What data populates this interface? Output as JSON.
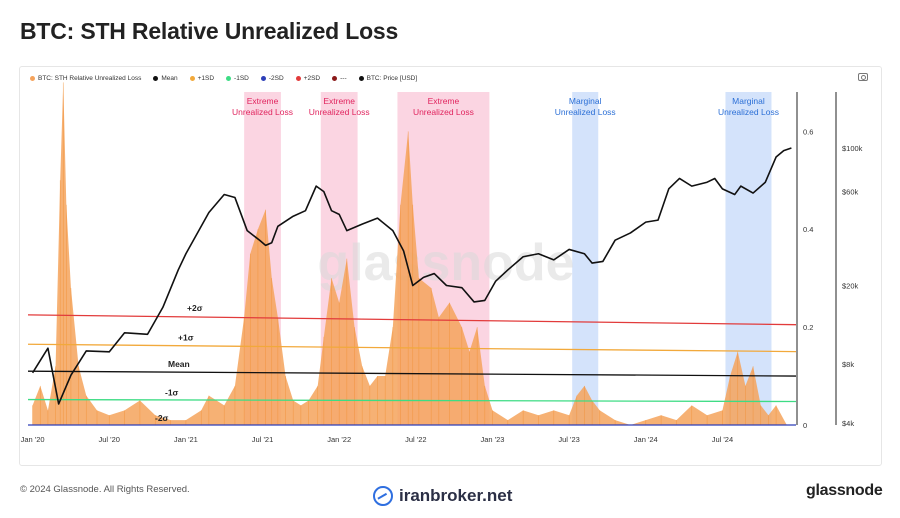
{
  "header": {
    "title": "BTC: STH Relative Unrealized Loss"
  },
  "legend": [
    {
      "label": "BTC: STH Relative Unrealized Loss",
      "color": "#f5a35c"
    },
    {
      "label": "Mean",
      "color": "#111111"
    },
    {
      "label": "+1SD",
      "color": "#f2a93b"
    },
    {
      "label": "-1SD",
      "color": "#3ddc84"
    },
    {
      "label": "-2SD",
      "color": "#2d3fb8"
    },
    {
      "label": "+2SD",
      "color": "#e23b3b"
    },
    {
      "label": "---",
      "color": "#8b1a1a"
    },
    {
      "label": "BTC: Price [USD]",
      "color": "#111111"
    }
  ],
  "footer": {
    "copyright": "© 2024 Glassnode. All Rights Reserved.",
    "brand": "iranbroker.net",
    "logo": "glassnode"
  },
  "watermark": "glassnode",
  "chart_data": {
    "type": "area",
    "x_labels": [
      "Jan '20",
      "Jul '20",
      "Jan '21",
      "Jul '21",
      "Jan '22",
      "Jul '22",
      "Jan '23",
      "Jul '23",
      "Jan '24",
      "Jul '24"
    ],
    "y_right_inner": {
      "ticks": [
        "0",
        "0.2",
        "0.4",
        "0.6"
      ],
      "range": [
        0,
        0.6
      ]
    },
    "y_right_outer": {
      "ticks": [
        "$4k",
        "$8k",
        "$20k",
        "$60k",
        "$100k"
      ],
      "scale": "log"
    },
    "bands": [
      {
        "label": "Extreme\nUnrealized Loss",
        "kind": "extreme",
        "start": 2021.38,
        "end": 2021.62
      },
      {
        "label": "Extreme\nUnrealized Loss",
        "kind": "extreme",
        "start": 2021.88,
        "end": 2022.12
      },
      {
        "label": "Extreme\nUnrealized Loss",
        "kind": "extreme",
        "start": 2022.38,
        "end": 2022.98
      },
      {
        "label": "Marginal\nUnrealized Loss",
        "kind": "marginal",
        "start": 2023.52,
        "end": 2023.69
      },
      {
        "label": "Marginal\nUnrealized Loss",
        "kind": "marginal",
        "start": 2024.52,
        "end": 2024.82
      }
    ],
    "sd_lines": [
      {
        "label": "+2σ",
        "color": "#e23b3b",
        "values": [
          0.225,
          0.205
        ]
      },
      {
        "label": "+1σ",
        "color": "#f2a93b",
        "values": [
          0.165,
          0.15
        ]
      },
      {
        "label": "Mean",
        "color": "#111111",
        "values": [
          0.11,
          0.1
        ]
      },
      {
        "label": "-1σ",
        "color": "#3ddc84",
        "values": [
          0.052,
          0.048
        ]
      },
      {
        "label": "-2σ",
        "color": "#2d3fb8",
        "values": [
          0.0,
          0.0
        ]
      }
    ],
    "series": [
      {
        "name": "BTC: STH Relative Unrealized Loss",
        "color": "#f5a35c",
        "points": [
          [
            2020.0,
            0.04
          ],
          [
            2020.05,
            0.08
          ],
          [
            2020.1,
            0.03
          ],
          [
            2020.15,
            0.12
          ],
          [
            2020.18,
            0.5
          ],
          [
            2020.2,
            0.7
          ],
          [
            2020.22,
            0.45
          ],
          [
            2020.25,
            0.28
          ],
          [
            2020.3,
            0.12
          ],
          [
            2020.35,
            0.06
          ],
          [
            2020.42,
            0.03
          ],
          [
            2020.5,
            0.02
          ],
          [
            2020.6,
            0.03
          ],
          [
            2020.7,
            0.05
          ],
          [
            2020.8,
            0.02
          ],
          [
            2020.9,
            0.01
          ],
          [
            2021.0,
            0.01
          ],
          [
            2021.1,
            0.03
          ],
          [
            2021.15,
            0.06
          ],
          [
            2021.25,
            0.04
          ],
          [
            2021.32,
            0.08
          ],
          [
            2021.38,
            0.22
          ],
          [
            2021.42,
            0.35
          ],
          [
            2021.47,
            0.4
          ],
          [
            2021.52,
            0.44
          ],
          [
            2021.56,
            0.3
          ],
          [
            2021.6,
            0.22
          ],
          [
            2021.65,
            0.1
          ],
          [
            2021.7,
            0.05
          ],
          [
            2021.75,
            0.04
          ],
          [
            2021.8,
            0.05
          ],
          [
            2021.86,
            0.08
          ],
          [
            2021.9,
            0.18
          ],
          [
            2021.95,
            0.3
          ],
          [
            2022.0,
            0.25
          ],
          [
            2022.05,
            0.34
          ],
          [
            2022.1,
            0.2
          ],
          [
            2022.15,
            0.12
          ],
          [
            2022.2,
            0.08
          ],
          [
            2022.25,
            0.1
          ],
          [
            2022.3,
            0.1
          ],
          [
            2022.35,
            0.2
          ],
          [
            2022.4,
            0.45
          ],
          [
            2022.45,
            0.6
          ],
          [
            2022.48,
            0.45
          ],
          [
            2022.52,
            0.3
          ],
          [
            2022.6,
            0.28
          ],
          [
            2022.65,
            0.22
          ],
          [
            2022.72,
            0.25
          ],
          [
            2022.8,
            0.2
          ],
          [
            2022.85,
            0.15
          ],
          [
            2022.9,
            0.2
          ],
          [
            2022.95,
            0.08
          ],
          [
            2023.0,
            0.03
          ],
          [
            2023.1,
            0.01
          ],
          [
            2023.2,
            0.03
          ],
          [
            2023.3,
            0.02
          ],
          [
            2023.4,
            0.03
          ],
          [
            2023.5,
            0.02
          ],
          [
            2023.55,
            0.06
          ],
          [
            2023.6,
            0.08
          ],
          [
            2023.65,
            0.05
          ],
          [
            2023.7,
            0.03
          ],
          [
            2023.8,
            0.01
          ],
          [
            2023.9,
            0.0
          ],
          [
            2024.0,
            0.01
          ],
          [
            2024.1,
            0.02
          ],
          [
            2024.2,
            0.01
          ],
          [
            2024.3,
            0.04
          ],
          [
            2024.4,
            0.02
          ],
          [
            2024.5,
            0.03
          ],
          [
            2024.55,
            0.1
          ],
          [
            2024.6,
            0.15
          ],
          [
            2024.65,
            0.08
          ],
          [
            2024.7,
            0.12
          ],
          [
            2024.75,
            0.04
          ],
          [
            2024.8,
            0.02
          ],
          [
            2024.85,
            0.04
          ],
          [
            2024.92,
            0.0
          ]
        ]
      },
      {
        "name": "BTC: Price [USD]",
        "color": "#111111",
        "points": [
          [
            2020.0,
            7200
          ],
          [
            2020.1,
            9600
          ],
          [
            2020.17,
            5000
          ],
          [
            2020.25,
            7000
          ],
          [
            2020.35,
            9300
          ],
          [
            2020.5,
            9200
          ],
          [
            2020.6,
            11500
          ],
          [
            2020.75,
            11300
          ],
          [
            2020.85,
            15500
          ],
          [
            2020.95,
            24000
          ],
          [
            2021.0,
            29000
          ],
          [
            2021.1,
            40000
          ],
          [
            2021.15,
            47000
          ],
          [
            2021.25,
            58000
          ],
          [
            2021.32,
            56000
          ],
          [
            2021.4,
            38000
          ],
          [
            2021.48,
            34000
          ],
          [
            2021.52,
            32000
          ],
          [
            2021.56,
            33000
          ],
          [
            2021.6,
            40000
          ],
          [
            2021.7,
            45000
          ],
          [
            2021.78,
            48000
          ],
          [
            2021.85,
            64000
          ],
          [
            2021.9,
            60000
          ],
          [
            2021.95,
            48000
          ],
          [
            2022.0,
            46000
          ],
          [
            2022.05,
            38000
          ],
          [
            2022.15,
            41000
          ],
          [
            2022.25,
            44000
          ],
          [
            2022.35,
            38000
          ],
          [
            2022.42,
            30000
          ],
          [
            2022.48,
            20000
          ],
          [
            2022.55,
            22000
          ],
          [
            2022.62,
            23000
          ],
          [
            2022.7,
            20000
          ],
          [
            2022.8,
            19500
          ],
          [
            2022.88,
            16500
          ],
          [
            2022.95,
            16800
          ],
          [
            2023.02,
            21000
          ],
          [
            2023.1,
            24000
          ],
          [
            2023.2,
            28000
          ],
          [
            2023.3,
            29000
          ],
          [
            2023.4,
            27000
          ],
          [
            2023.5,
            30500
          ],
          [
            2023.6,
            29000
          ],
          [
            2023.65,
            26000
          ],
          [
            2023.72,
            26500
          ],
          [
            2023.8,
            34000
          ],
          [
            2023.9,
            37000
          ],
          [
            2024.0,
            42000
          ],
          [
            2024.08,
            43000
          ],
          [
            2024.15,
            62000
          ],
          [
            2024.22,
            70000
          ],
          [
            2024.3,
            64000
          ],
          [
            2024.4,
            67000
          ],
          [
            2024.45,
            70000
          ],
          [
            2024.5,
            62000
          ],
          [
            2024.58,
            58000
          ],
          [
            2024.62,
            64000
          ],
          [
            2024.7,
            59000
          ],
          [
            2024.78,
            67000
          ],
          [
            2024.85,
            90000
          ],
          [
            2024.9,
            97000
          ],
          [
            2024.95,
            100000
          ]
        ]
      }
    ]
  }
}
